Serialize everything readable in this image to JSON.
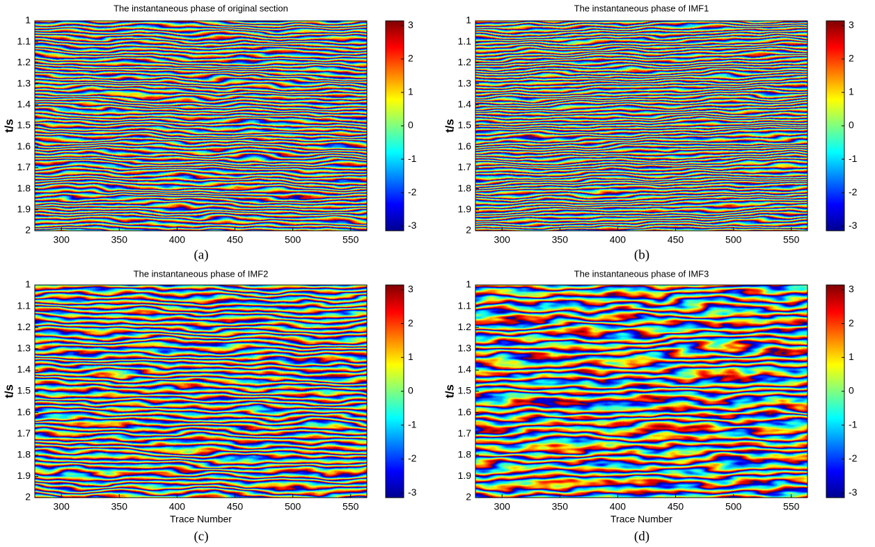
{
  "chart_data": [
    {
      "type": "phase-image",
      "title": "The instantaneous phase of original section",
      "ylabel": "t/s",
      "caption": "(a)",
      "xlim": [
        277,
        564
      ],
      "xticks": [
        300,
        350,
        400,
        450,
        500,
        550
      ],
      "ylim": [
        1,
        2
      ],
      "y_reversed": true,
      "yticks": [
        1,
        1.1,
        1.2,
        1.3,
        1.4,
        1.5,
        1.6,
        1.7,
        1.8,
        1.9,
        2
      ],
      "clim": [
        -3.1416,
        3.1416
      ],
      "cticks": [
        -3,
        -2,
        -1,
        0,
        1,
        2,
        3
      ],
      "colormap": "jet"
    },
    {
      "type": "phase-image",
      "title": "The instantaneous phase of IMF1",
      "ylabel": "t/s",
      "caption": "(b)",
      "xlim": [
        277,
        564
      ],
      "xticks": [
        300,
        350,
        400,
        450,
        500,
        550
      ],
      "ylim": [
        1,
        2
      ],
      "y_reversed": true,
      "yticks": [
        1,
        1.1,
        1.2,
        1.3,
        1.4,
        1.5,
        1.6,
        1.7,
        1.8,
        1.9,
        2
      ],
      "clim": [
        -3.1416,
        3.1416
      ],
      "cticks": [
        -3,
        -2,
        -1,
        0,
        1,
        2,
        3
      ],
      "colormap": "jet"
    },
    {
      "type": "phase-image",
      "title": "The instantaneous phase of IMF2",
      "xlabel": "Trace Number",
      "ylabel": "t/s",
      "caption": "(c)",
      "xlim": [
        277,
        564
      ],
      "xticks": [
        300,
        350,
        400,
        450,
        500,
        550
      ],
      "ylim": [
        1,
        2
      ],
      "y_reversed": true,
      "yticks": [
        1,
        1.1,
        1.2,
        1.3,
        1.4,
        1.5,
        1.6,
        1.7,
        1.8,
        1.9,
        2
      ],
      "clim": [
        -3.1416,
        3.1416
      ],
      "cticks": [
        -3,
        -2,
        -1,
        0,
        1,
        2,
        3
      ],
      "colormap": "jet"
    },
    {
      "type": "phase-image",
      "title": "The instantaneous phase of IMF3",
      "xlabel": "Trace Number",
      "ylabel": "t/s",
      "caption": "(d)",
      "xlim": [
        277,
        564
      ],
      "xticks": [
        300,
        350,
        400,
        450,
        500,
        550
      ],
      "ylim": [
        1,
        2
      ],
      "y_reversed": true,
      "yticks": [
        1,
        1.1,
        1.2,
        1.3,
        1.4,
        1.5,
        1.6,
        1.7,
        1.8,
        1.9,
        2
      ],
      "clim": [
        -3.1416,
        3.1416
      ],
      "cticks": [
        -3,
        -2,
        -1,
        0,
        1,
        2,
        3
      ],
      "colormap": "jet"
    }
  ]
}
